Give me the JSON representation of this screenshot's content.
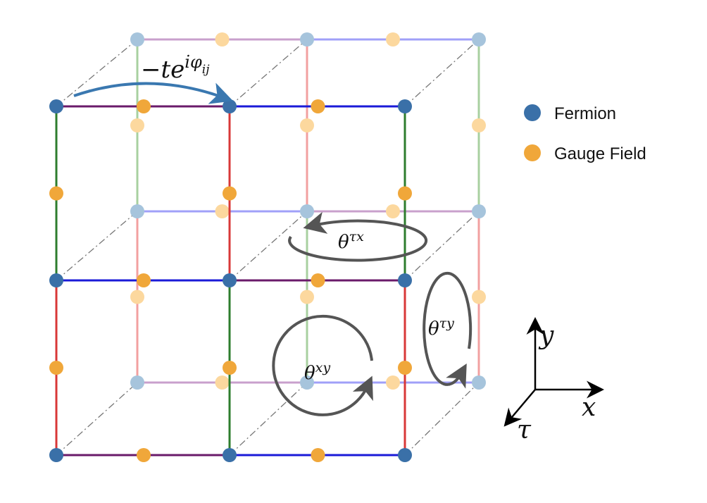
{
  "legend": {
    "fermion": {
      "label": "Fermion",
      "color": "#3a70a8"
    },
    "gauge": {
      "label": "Gauge Field",
      "color": "#f0a73a"
    }
  },
  "hopping": {
    "base": "−te",
    "sup": "iφ",
    "subsup": "ij",
    "color": "#3a78b0"
  },
  "plaquettes": {
    "tx": {
      "base": "θ",
      "sup": "τx"
    },
    "xy": {
      "base": "θ",
      "sup": "xy"
    },
    "ty": {
      "base": "θ",
      "sup": "τy"
    }
  },
  "axes": {
    "y": "y",
    "x": "x",
    "tau": "τ"
  },
  "colors": {
    "purple": "#6a1a6a",
    "blue": "#1a1ad8",
    "green": "#2e7d2e",
    "red": "#d83838",
    "purple_light": "#c9a0cc",
    "blue_light": "#a0a0f8",
    "green_light": "#a8d0a0",
    "red_light": "#f2a0a0",
    "fermion_back": "#a6c4dc",
    "gauge_back": "#fcd89e",
    "loop": "#555555",
    "diagonal": "#777777"
  }
}
